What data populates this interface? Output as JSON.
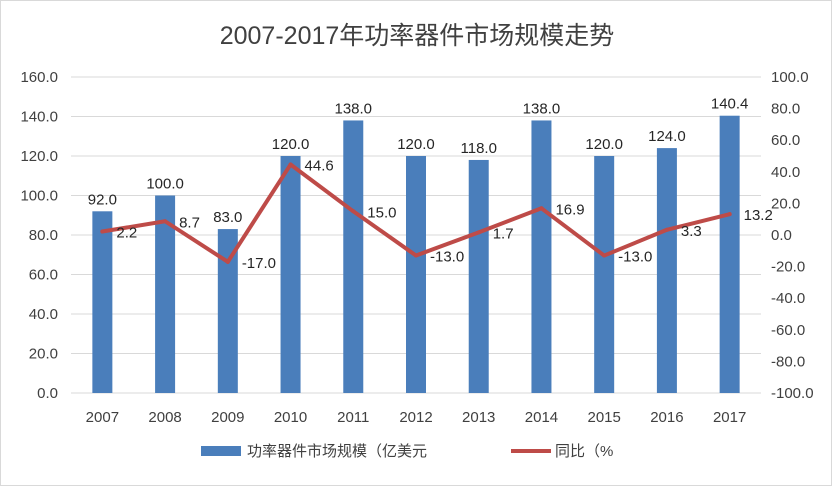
{
  "chart_data": {
    "type": "bar",
    "title": "2007-2017年功率器件市场规模走势",
    "categories": [
      "2007",
      "2008",
      "2009",
      "2010",
      "2011",
      "2012",
      "2013",
      "2014",
      "2015",
      "2016",
      "2017"
    ],
    "series": [
      {
        "name": "功率器件市场规模（亿美元",
        "type": "bar",
        "axis": "left",
        "color": "#4a7ebb",
        "values": [
          92.0,
          100.0,
          83.0,
          120.0,
          138.0,
          120.0,
          118.0,
          138.0,
          120.0,
          124.0,
          140.4
        ],
        "labels": [
          "92.0",
          "100.0",
          "83.0",
          "120.0",
          "138.0",
          "120.0",
          "118.0",
          "138.0",
          "120.0",
          "124.0",
          "140.4"
        ]
      },
      {
        "name": "同比（%",
        "type": "line",
        "axis": "right",
        "color": "#be4b48",
        "values": [
          2.2,
          8.7,
          -17.0,
          44.6,
          15.0,
          -13.0,
          1.7,
          16.9,
          -13.0,
          3.3,
          13.2
        ],
        "labels": [
          "2.2",
          "8.7",
          "-17.0",
          "44.6",
          "15.0",
          "-13.0",
          "1.7",
          "16.9",
          "-13.0",
          "3.3",
          "13.2"
        ]
      }
    ],
    "y_left": {
      "min": 0,
      "max": 160,
      "step": 20,
      "ticks": [
        "0.0",
        "20.0",
        "40.0",
        "60.0",
        "80.0",
        "100.0",
        "120.0",
        "140.0",
        "160.0"
      ]
    },
    "y_right": {
      "min": -100,
      "max": 100,
      "step": 20,
      "ticks": [
        "-100.0",
        "-80.0",
        "-60.0",
        "-40.0",
        "-20.0",
        "0.0",
        "20.0",
        "40.0",
        "60.0",
        "80.0",
        "100.0"
      ]
    },
    "grid": true,
    "legend_position": "bottom",
    "colors": {
      "grid": "#d9d9d9",
      "text": "#404040"
    }
  }
}
